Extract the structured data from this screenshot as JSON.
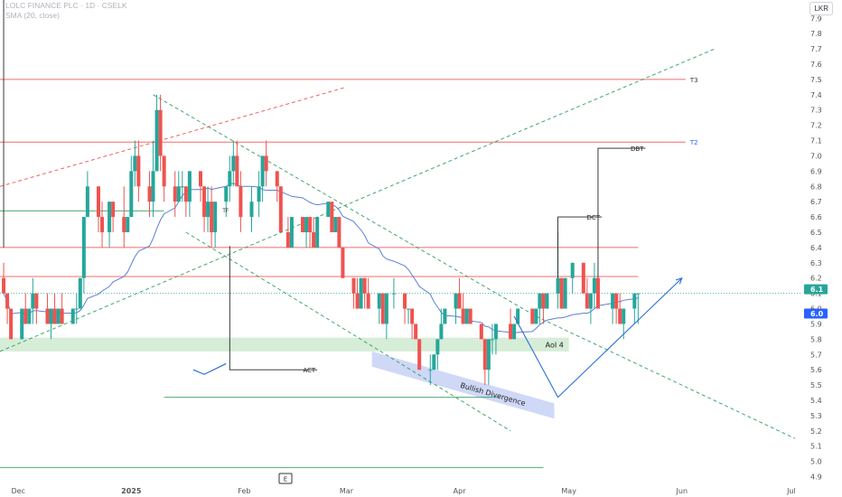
{
  "header": {
    "title": "LOLC FINANCE PLC · 1D · CSELK",
    "indicator": "SMA (20, close)",
    "currency": "LKR"
  },
  "colors": {
    "up": "#26a69a",
    "down": "#ef5350",
    "sma": "#5b7fd6",
    "hline_red": "#ef5350",
    "hline_green": "#26a69a",
    "channel": "#2e9e5e",
    "label_current": "#26a69a",
    "label_sma": "#2962ff"
  },
  "chart_data": {
    "type": "candlestick",
    "y_ticks": [
      4.9,
      5.0,
      5.1,
      5.2,
      5.3,
      5.4,
      5.5,
      5.6,
      5.7,
      5.8,
      5.9,
      6.0,
      6.1,
      6.2,
      6.3,
      6.4,
      6.5,
      6.6,
      6.7,
      6.8,
      6.9,
      7.0,
      7.1,
      7.2,
      7.3,
      7.4,
      7.5,
      7.6,
      7.7,
      7.8,
      7.9
    ],
    "ylim": [
      4.85,
      8.02
    ],
    "x_labels": [
      {
        "label": "Dec",
        "date": "2024-12-01"
      },
      {
        "label": "2025",
        "date": "2025-01-01"
      },
      {
        "label": "Feb",
        "date": "2025-02-01"
      },
      {
        "label": "Mar",
        "date": "2025-03-01"
      },
      {
        "label": "Apr",
        "date": "2025-04-01"
      },
      {
        "label": "May",
        "date": "2025-05-01"
      },
      {
        "label": "Jun",
        "date": "2025-06-01"
      },
      {
        "label": "Jul",
        "date": "2025-07-01"
      }
    ],
    "xlim": [
      "2024-11-26",
      "2025-07-04"
    ],
    "price_labels": {
      "last": "6.1",
      "sma": "6.0",
      "last_value": 6.1,
      "sma_value": 6.0
    },
    "candles": [
      [
        "2024-11-27",
        6.2,
        6.3,
        6.1,
        6.1
      ],
      [
        "2024-11-28",
        6.1,
        6.1,
        5.9,
        6.0
      ],
      [
        "2024-11-29",
        6.0,
        6.0,
        5.8,
        5.8
      ],
      [
        "2024-12-02",
        5.8,
        6.0,
        5.8,
        6.0
      ],
      [
        "2024-12-03",
        6.0,
        6.1,
        5.9,
        5.9
      ],
      [
        "2024-12-04",
        5.9,
        6.0,
        5.9,
        6.0
      ],
      [
        "2024-12-05",
        6.0,
        6.2,
        5.9,
        6.1
      ],
      [
        "2024-12-06",
        6.1,
        6.1,
        5.9,
        6.0
      ],
      [
        "2024-12-09",
        6.0,
        6.1,
        5.9,
        5.9
      ],
      [
        "2024-12-10",
        5.9,
        6.0,
        5.8,
        6.0
      ],
      [
        "2024-12-11",
        6.0,
        6.1,
        5.9,
        5.9
      ],
      [
        "2024-12-12",
        5.9,
        6.0,
        5.9,
        6.0
      ],
      [
        "2024-12-13",
        6.0,
        6.1,
        5.9,
        5.9
      ],
      [
        "2024-12-16",
        5.9,
        6.0,
        5.9,
        6.0
      ],
      [
        "2024-12-17",
        6.0,
        6.1,
        5.9,
        6.0
      ],
      [
        "2024-12-18",
        6.0,
        6.2,
        6.0,
        6.2
      ],
      [
        "2024-12-19",
        6.2,
        6.6,
        6.1,
        6.6
      ],
      [
        "2024-12-20",
        6.6,
        6.9,
        6.6,
        6.8
      ],
      [
        "2024-12-23",
        6.8,
        6.8,
        6.5,
        6.6
      ],
      [
        "2024-12-24",
        6.6,
        6.7,
        6.4,
        6.5
      ],
      [
        "2024-12-26",
        6.5,
        6.7,
        6.4,
        6.7
      ],
      [
        "2024-12-27",
        6.7,
        6.7,
        6.5,
        6.6
      ],
      [
        "2024-12-30",
        6.6,
        6.8,
        6.4,
        6.5
      ],
      [
        "2024-12-31",
        6.5,
        6.6,
        6.5,
        6.6
      ],
      [
        "2025-01-01",
        6.6,
        7.0,
        6.6,
        6.9
      ],
      [
        "2025-01-02",
        6.9,
        7.1,
        6.8,
        7.0
      ],
      [
        "2025-01-03",
        7.0,
        7.1,
        6.7,
        6.8
      ],
      [
        "2025-01-06",
        6.8,
        6.9,
        6.6,
        6.7
      ],
      [
        "2025-01-07",
        6.7,
        7.1,
        6.6,
        6.9
      ],
      [
        "2025-01-08",
        6.9,
        7.4,
        6.9,
        7.3
      ],
      [
        "2025-01-09",
        7.3,
        7.4,
        6.9,
        7.0
      ],
      [
        "2025-01-10",
        7.0,
        7.0,
        6.7,
        6.8
      ],
      [
        "2025-01-13",
        6.8,
        6.9,
        6.6,
        6.7
      ],
      [
        "2025-01-14",
        6.7,
        6.9,
        6.7,
        6.8
      ],
      [
        "2025-01-15",
        6.8,
        6.9,
        6.7,
        6.8
      ],
      [
        "2025-01-16",
        6.8,
        6.8,
        6.6,
        6.7
      ],
      [
        "2025-01-17",
        6.7,
        6.9,
        6.6,
        6.9
      ],
      [
        "2025-01-20",
        6.9,
        6.9,
        6.7,
        6.8
      ],
      [
        "2025-01-21",
        6.8,
        6.8,
        6.5,
        6.6
      ],
      [
        "2025-01-22",
        6.6,
        6.8,
        6.5,
        6.7
      ],
      [
        "2025-01-23",
        6.7,
        6.8,
        6.4,
        6.5
      ],
      [
        "2025-01-24",
        6.5,
        6.7,
        6.4,
        6.7
      ],
      [
        "2025-01-27",
        6.7,
        6.8,
        6.6,
        6.8
      ],
      [
        "2025-01-28",
        6.8,
        7.0,
        6.7,
        6.9
      ],
      [
        "2025-01-29",
        6.9,
        7.1,
        6.8,
        7.0
      ],
      [
        "2025-01-30",
        7.0,
        7.1,
        6.8,
        6.8
      ],
      [
        "2025-01-31",
        6.8,
        6.9,
        6.5,
        6.6
      ],
      [
        "2025-02-03",
        6.6,
        6.8,
        6.5,
        6.7
      ],
      [
        "2025-02-05",
        6.7,
        6.9,
        6.6,
        6.8
      ],
      [
        "2025-02-06",
        6.8,
        7.0,
        6.7,
        7.0
      ],
      [
        "2025-02-07",
        7.0,
        7.1,
        6.8,
        6.9
      ],
      [
        "2025-02-10",
        6.9,
        6.9,
        6.7,
        6.8
      ],
      [
        "2025-02-11",
        6.8,
        6.8,
        6.5,
        6.5
      ],
      [
        "2025-02-13",
        6.5,
        6.6,
        6.4,
        6.4
      ],
      [
        "2025-02-14",
        6.4,
        6.6,
        6.4,
        6.6
      ],
      [
        "2025-02-17",
        6.6,
        6.6,
        6.5,
        6.5
      ],
      [
        "2025-02-18",
        6.5,
        6.6,
        6.4,
        6.6
      ],
      [
        "2025-02-19",
        6.6,
        6.6,
        6.4,
        6.5
      ],
      [
        "2025-02-20",
        6.5,
        6.6,
        6.4,
        6.4
      ],
      [
        "2025-02-21",
        6.4,
        6.6,
        6.4,
        6.6
      ],
      [
        "2025-02-24",
        6.6,
        6.7,
        6.6,
        6.7
      ],
      [
        "2025-02-25",
        6.7,
        6.7,
        6.5,
        6.5
      ],
      [
        "2025-02-26",
        6.5,
        6.6,
        6.5,
        6.6
      ],
      [
        "2025-02-27",
        6.6,
        6.6,
        6.4,
        6.4
      ],
      [
        "2025-02-28",
        6.4,
        6.4,
        6.2,
        6.2
      ],
      [
        "2025-03-03",
        6.2,
        6.2,
        6.0,
        6.1
      ],
      [
        "2025-03-04",
        6.1,
        6.2,
        6.0,
        6.0
      ],
      [
        "2025-03-05",
        6.0,
        6.2,
        6.0,
        6.2
      ],
      [
        "2025-03-06",
        6.2,
        6.2,
        6.0,
        6.1
      ],
      [
        "2025-03-07",
        6.1,
        6.2,
        6.0,
        6.0
      ],
      [
        "2025-03-10",
        6.0,
        6.1,
        5.9,
        6.1
      ],
      [
        "2025-03-11",
        6.1,
        6.1,
        5.9,
        5.9
      ],
      [
        "2025-03-12",
        5.9,
        6.1,
        5.8,
        6.1
      ],
      [
        "2025-03-14",
        6.1,
        6.2,
        6.0,
        6.1
      ],
      [
        "2025-03-17",
        6.1,
        6.1,
        5.9,
        6.0
      ],
      [
        "2025-03-18",
        6.0,
        6.0,
        5.9,
        6.0
      ],
      [
        "2025-03-19",
        6.0,
        6.0,
        5.8,
        5.9
      ],
      [
        "2025-03-20",
        5.9,
        5.9,
        5.8,
        5.8
      ],
      [
        "2025-03-21",
        5.8,
        5.8,
        5.6,
        5.6
      ],
      [
        "2025-03-24",
        5.6,
        5.7,
        5.5,
        5.6
      ],
      [
        "2025-03-25",
        5.6,
        5.7,
        5.6,
        5.7
      ],
      [
        "2025-03-26",
        5.7,
        5.8,
        5.6,
        5.8
      ],
      [
        "2025-03-27",
        5.8,
        6.0,
        5.8,
        5.9
      ],
      [
        "2025-03-28",
        5.9,
        6.0,
        5.9,
        6.0
      ],
      [
        "2025-03-31",
        6.0,
        6.1,
        5.9,
        6.1
      ],
      [
        "2025-04-01",
        6.1,
        6.2,
        6.0,
        6.0
      ],
      [
        "2025-04-02",
        6.0,
        6.1,
        5.9,
        5.9
      ],
      [
        "2025-04-03",
        5.9,
        6.0,
        5.9,
        6.0
      ],
      [
        "2025-04-04",
        6.0,
        6.0,
        5.9,
        5.9
      ],
      [
        "2025-04-07",
        5.9,
        5.9,
        5.8,
        5.8
      ],
      [
        "2025-04-08",
        5.8,
        5.8,
        5.5,
        5.6
      ],
      [
        "2025-04-09",
        5.6,
        5.8,
        5.5,
        5.8
      ],
      [
        "2025-04-10",
        5.8,
        5.9,
        5.7,
        5.8
      ],
      [
        "2025-04-11",
        5.8,
        5.9,
        5.7,
        5.9
      ],
      [
        "2025-04-15",
        5.9,
        6.0,
        5.8,
        5.8
      ],
      [
        "2025-04-16",
        5.8,
        5.9,
        5.8,
        5.9
      ],
      [
        "2025-04-17",
        5.9,
        6.0,
        5.9,
        6.0
      ],
      [
        "2025-04-21",
        6.0,
        6.0,
        5.9,
        5.9
      ],
      [
        "2025-04-22",
        5.9,
        6.0,
        5.9,
        6.0
      ],
      [
        "2025-04-23",
        6.0,
        6.1,
        5.9,
        6.1
      ],
      [
        "2025-04-24",
        6.1,
        6.1,
        5.9,
        6.0
      ],
      [
        "2025-04-25",
        6.0,
        6.1,
        6.0,
        6.1
      ],
      [
        "2025-04-28",
        6.1,
        6.5,
        6.0,
        6.2
      ],
      [
        "2025-04-29",
        6.2,
        6.2,
        6.0,
        6.0
      ],
      [
        "2025-04-30",
        6.0,
        6.2,
        6.0,
        6.2
      ],
      [
        "2025-05-02",
        6.2,
        6.3,
        6.1,
        6.3
      ],
      [
        "2025-05-05",
        6.3,
        6.3,
        6.1,
        6.1
      ],
      [
        "2025-05-06",
        6.1,
        6.2,
        6.0,
        6.0
      ],
      [
        "2025-05-07",
        6.0,
        6.1,
        5.9,
        6.1
      ],
      [
        "2025-05-08",
        6.1,
        6.3,
        6.0,
        6.2
      ],
      [
        "2025-05-09",
        6.2,
        6.2,
        6.0,
        6.0
      ],
      [
        "2025-05-13",
        6.0,
        6.1,
        5.9,
        6.1
      ],
      [
        "2025-05-14",
        6.1,
        6.1,
        5.9,
        6.0
      ],
      [
        "2025-05-15",
        6.0,
        6.1,
        5.9,
        5.9
      ],
      [
        "2025-05-16",
        5.9,
        6.0,
        5.8,
        6.0
      ],
      [
        "2025-05-19",
        6.0,
        6.1,
        5.9,
        6.1
      ],
      [
        "2025-05-20",
        6.1,
        6.1,
        5.9,
        6.1
      ]
    ],
    "annotations": {
      "hlines": [
        {
          "label": "T3",
          "y": 7.5,
          "x0": "2024-11-26",
          "x1": "2025-06-02",
          "color": "red"
        },
        {
          "label": "T2",
          "y": 7.09,
          "x0": "2024-11-26",
          "x1": "2025-06-02",
          "color": "red"
        },
        {
          "label": "",
          "y": 6.4,
          "x0": "2024-11-26",
          "x1": "2025-05-20",
          "color": "red"
        },
        {
          "label": "",
          "y": 6.21,
          "x0": "2024-11-26",
          "x1": "2025-05-20",
          "color": "red"
        },
        {
          "label": "",
          "y": 6.64,
          "x0": "2024-11-26",
          "x1": "2025-01-10",
          "color": "green"
        },
        {
          "label": "",
          "y": 5.42,
          "x0": "2025-01-10",
          "x1": "2025-04-12",
          "color": "green"
        },
        {
          "label": "",
          "y": 4.96,
          "x0": "2024-11-26",
          "x1": "2025-04-24",
          "color": "green"
        }
      ],
      "zone": {
        "label": "AoI 4",
        "y0": 5.72,
        "y1": 5.81,
        "x0": "2024-11-26",
        "x1": "2025-05-01"
      },
      "divergence_box": {
        "label": "Bullish Divergence",
        "points": [
          [
            "2025-03-08",
            5.72
          ],
          [
            "2025-04-27",
            5.38
          ],
          [
            "2025-04-27",
            5.28
          ],
          [
            "2025-03-08",
            5.62
          ]
        ]
      },
      "pointers": [
        {
          "label": "ACT",
          "from": [
            "2025-01-28",
            6.41
          ],
          "corner": [
            "2025-01-28",
            5.6
          ],
          "to": [
            "2025-02-21",
            5.6
          ]
        },
        {
          "label": "DCT",
          "from": [
            "2025-04-28",
            6.2
          ],
          "corner": [
            "2025-04-28",
            6.6
          ],
          "to": [
            "2025-05-10",
            6.6
          ]
        },
        {
          "label": "DBT",
          "from": [
            "2025-05-09",
            6.2
          ],
          "corner": [
            "2025-05-09",
            7.05
          ],
          "to": [
            "2025-05-22",
            7.05
          ]
        },
        {
          "label": "",
          "from": [
            "2024-11-27",
            6.4
          ],
          "corner": [
            "2024-11-27",
            8.05
          ],
          "to": [
            "2024-11-27",
            8.05
          ]
        }
      ],
      "small_labels": [
        {
          "label": "TF",
          "x": "2025-01-26",
          "y": 6.63
        }
      ],
      "trendlines": [
        {
          "style": "dashed",
          "color": "green",
          "p1": [
            "2025-01-07",
            7.4
          ],
          "p2": [
            "2025-04-22",
            5.95
          ]
        },
        {
          "style": "dashed",
          "color": "green",
          "p1": [
            "2025-04-22",
            5.95
          ],
          "p2": [
            "2025-07-02",
            5.15
          ]
        },
        {
          "style": "dashed",
          "color": "green",
          "p1": [
            "2024-11-26",
            5.72
          ],
          "p2": [
            "2025-06-10",
            7.7
          ]
        },
        {
          "style": "dashed",
          "color": "green",
          "p1": [
            "2025-01-16",
            6.5
          ],
          "p2": [
            "2025-04-15",
            5.2
          ]
        },
        {
          "style": "dashed",
          "color": "red",
          "p1": [
            "2024-11-26",
            6.8
          ],
          "p2": [
            "2025-03-01",
            7.45
          ]
        }
      ],
      "arrow": {
        "color": "#2b6fd6",
        "points": [
          [
            "2025-04-16",
            5.95
          ],
          [
            "2025-04-28",
            5.42
          ],
          [
            "2025-06-01",
            6.2
          ]
        ]
      },
      "check": {
        "color": "#2b6fd6",
        "points": [
          [
            "2025-01-18",
            5.6
          ],
          [
            "2025-01-21",
            5.57
          ],
          [
            "2025-01-27",
            5.64
          ]
        ]
      }
    }
  },
  "events_marker": "E"
}
